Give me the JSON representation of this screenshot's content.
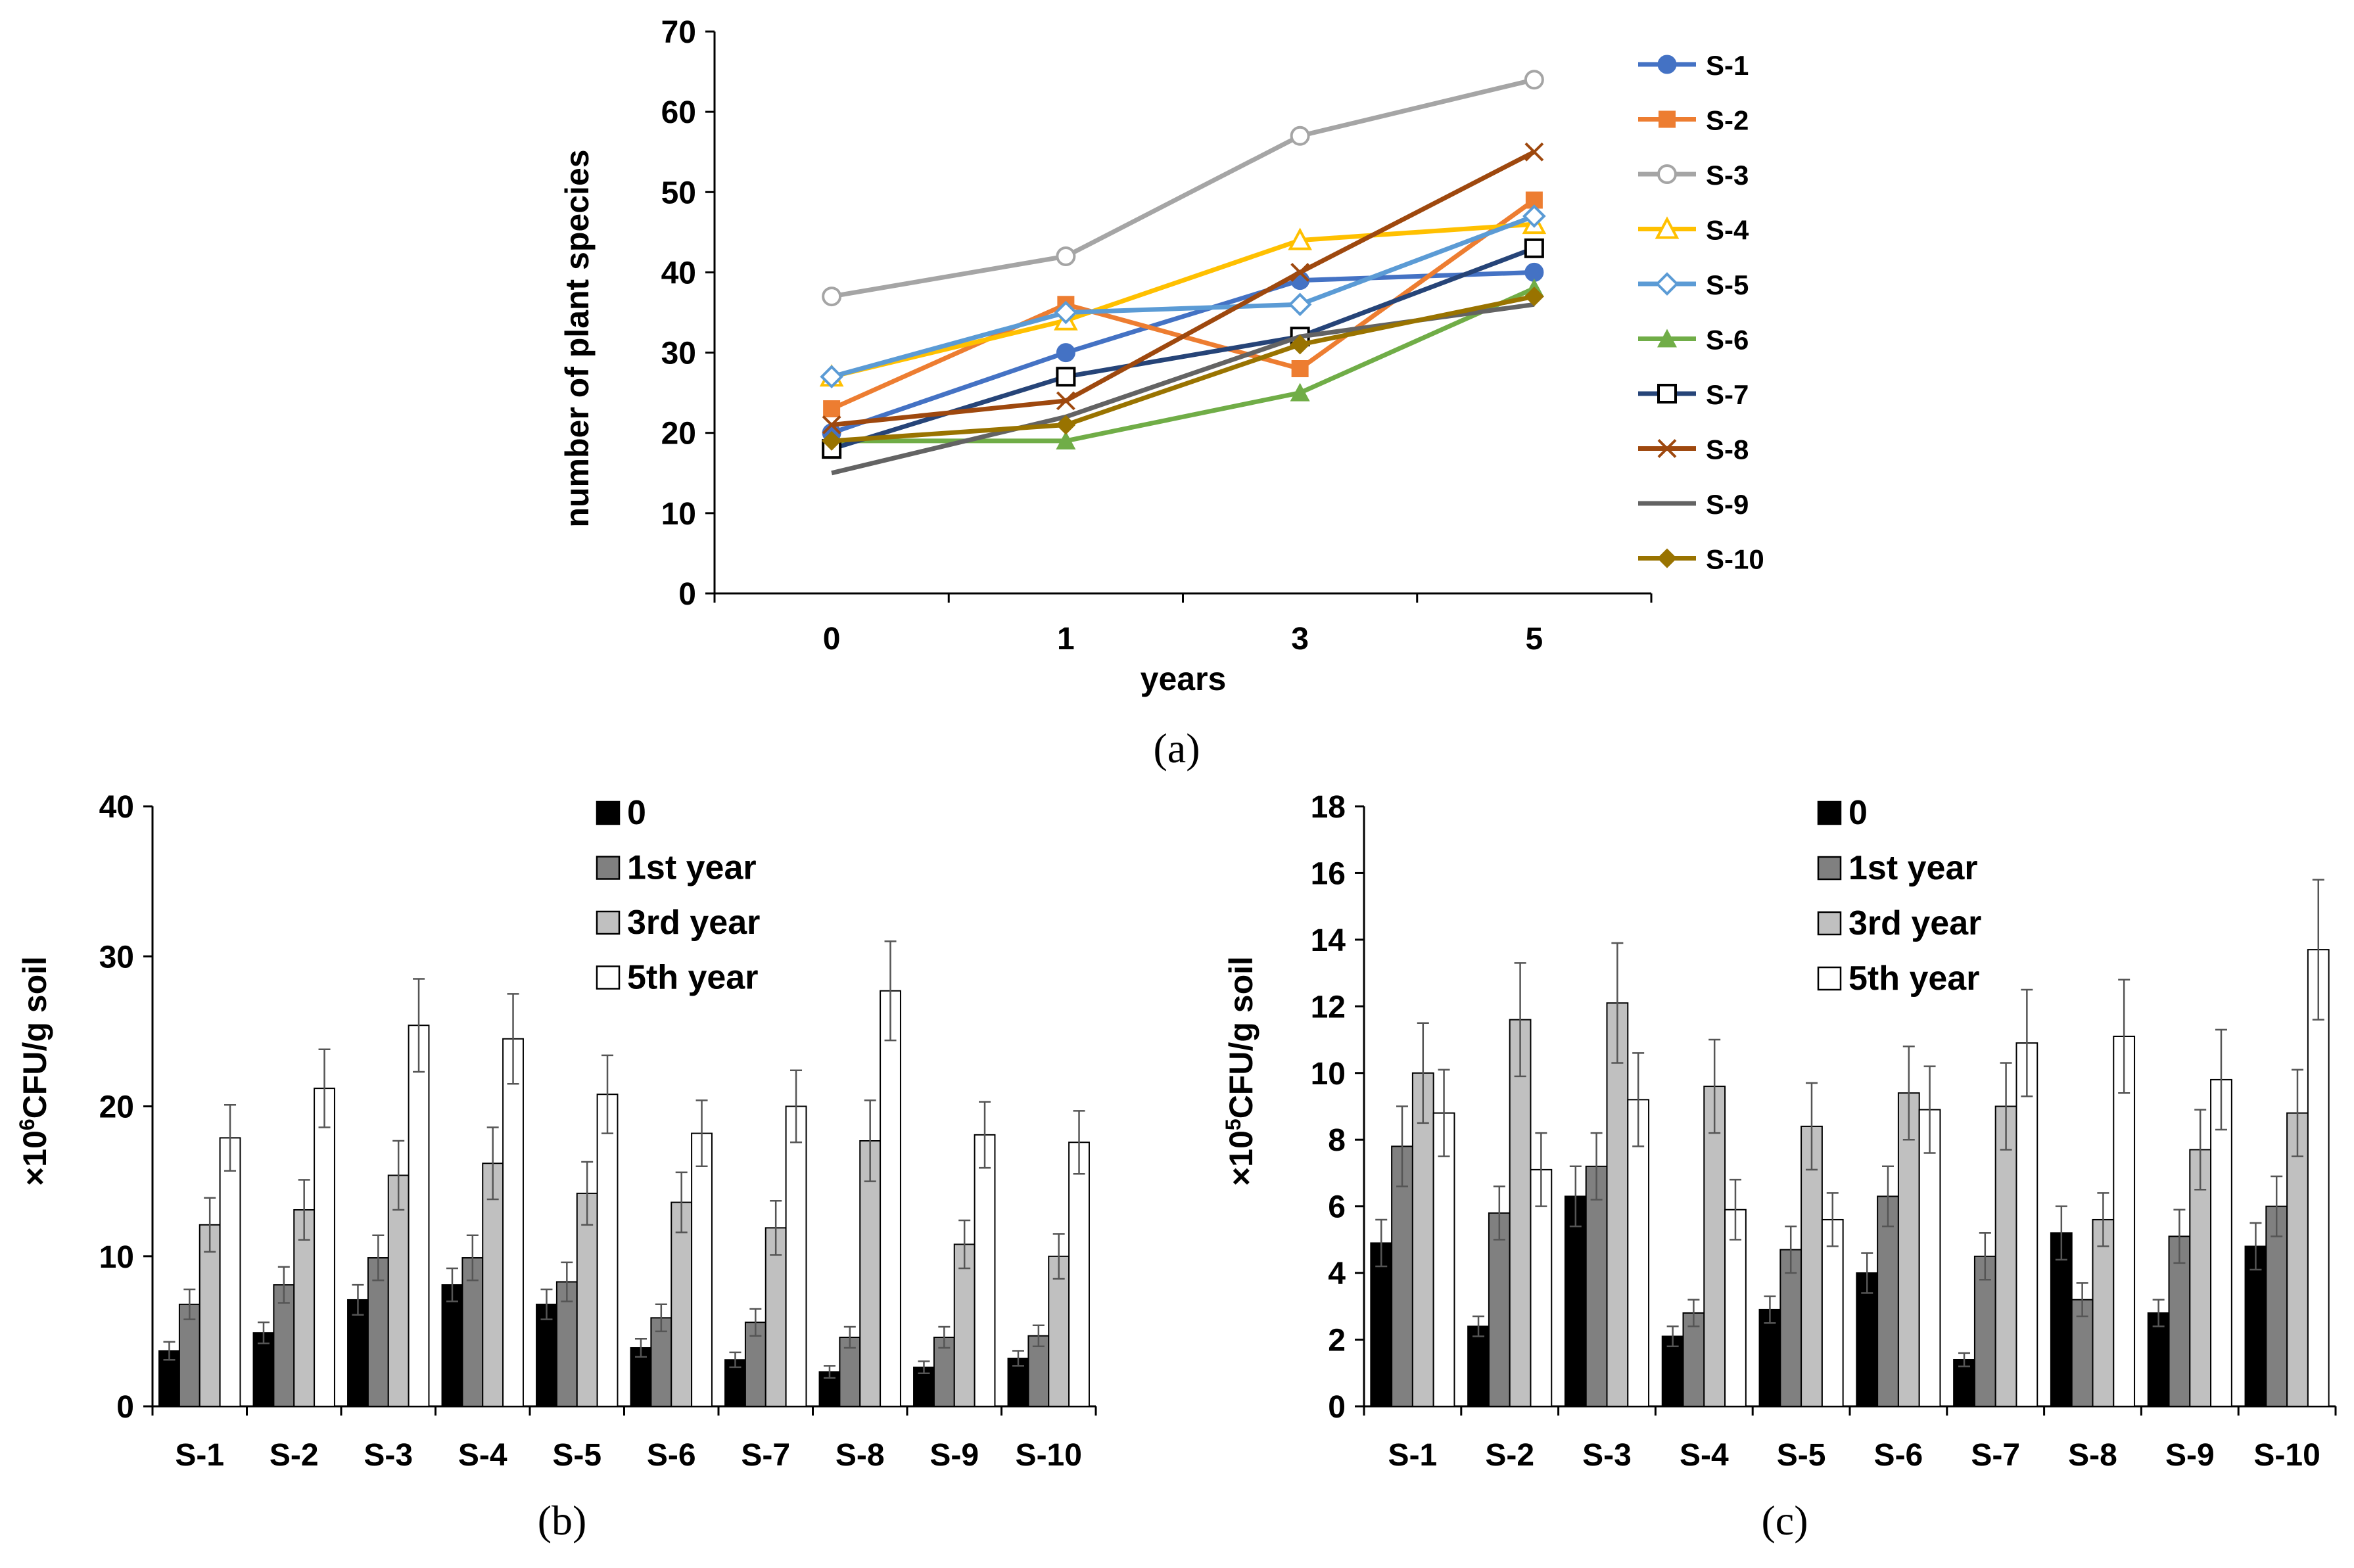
{
  "chart_data": [
    {
      "type": "line",
      "caption": "(a)",
      "xlabel": "years",
      "ylabel": "number of plant species",
      "categories": [
        "0",
        "1",
        "3",
        "5"
      ],
      "ylim": [
        0,
        70
      ],
      "yticks": [
        "0",
        "10",
        "20",
        "30",
        "40",
        "50",
        "60",
        "70"
      ],
      "series": [
        {
          "name": "S-1",
          "values": [
            20,
            30,
            39,
            40
          ],
          "color": "#4472C4",
          "marker": "circle-filled"
        },
        {
          "name": "S-2",
          "values": [
            23,
            36,
            28,
            49
          ],
          "color": "#ED7D31",
          "marker": "square-filled"
        },
        {
          "name": "S-3",
          "values": [
            37,
            42,
            57,
            64
          ],
          "color": "#A5A5A5",
          "marker": "circle-open"
        },
        {
          "name": "S-4",
          "values": [
            27,
            34,
            44,
            46
          ],
          "color": "#FFC000",
          "marker": "triangle-open"
        },
        {
          "name": "S-5",
          "values": [
            27,
            35,
            36,
            47
          ],
          "color": "#5B9BD5",
          "marker": "diamond-open"
        },
        {
          "name": "S-6",
          "values": [
            19,
            19,
            25,
            38
          ],
          "color": "#70AD47",
          "marker": "triangle-filled"
        },
        {
          "name": "S-7",
          "values": [
            18,
            27,
            32,
            43
          ],
          "color": "#264478",
          "marker": "square-open"
        },
        {
          "name": "S-8",
          "values": [
            21,
            24,
            40,
            55
          ],
          "color": "#9E480E",
          "marker": "x"
        },
        {
          "name": "S-9",
          "values": [
            15,
            22,
            32,
            36
          ],
          "color": "#636363",
          "marker": "none"
        },
        {
          "name": "S-10",
          "values": [
            19,
            21,
            31,
            37
          ],
          "color": "#997300",
          "marker": "diamond-filled"
        }
      ]
    },
    {
      "type": "bar",
      "caption": "(b)",
      "ylabel": "×10⁶CFU/g soil",
      "ylabel_prefix": "×10",
      "ylabel_exp": "6",
      "ylabel_suffix": "CFU/g soil",
      "categories": [
        "S-1",
        "S-2",
        "S-3",
        "S-4",
        "S-5",
        "S-6",
        "S-7",
        "S-8",
        "S-9",
        "S-10"
      ],
      "ylim": [
        0,
        40
      ],
      "yticks": [
        "0",
        "10",
        "20",
        "30",
        "40"
      ],
      "series": [
        {
          "name": "0",
          "color": "#000000",
          "values": [
            3.7,
            4.9,
            7.1,
            8.1,
            6.8,
            3.9,
            3.1,
            2.3,
            2.6,
            3.2
          ],
          "errors": [
            0.6,
            0.7,
            1.0,
            1.1,
            1.0,
            0.6,
            0.5,
            0.4,
            0.4,
            0.5
          ]
        },
        {
          "name": "1st year",
          "color": "#808080",
          "values": [
            6.8,
            8.1,
            9.9,
            9.9,
            8.3,
            5.9,
            5.6,
            4.6,
            4.6,
            4.7
          ],
          "errors": [
            1.0,
            1.2,
            1.5,
            1.5,
            1.3,
            0.9,
            0.9,
            0.7,
            0.7,
            0.7
          ]
        },
        {
          "name": "3rd year",
          "color": "#C0C0C0",
          "values": [
            12.1,
            13.1,
            15.4,
            16.2,
            14.2,
            13.6,
            11.9,
            17.7,
            10.8,
            10.0
          ],
          "errors": [
            1.8,
            2.0,
            2.3,
            2.4,
            2.1,
            2.0,
            1.8,
            2.7,
            1.6,
            1.5
          ]
        },
        {
          "name": "5th year",
          "color": "#FFFFFF",
          "values": [
            17.9,
            21.2,
            25.4,
            24.5,
            20.8,
            18.2,
            20.0,
            27.7,
            18.1,
            17.6
          ],
          "errors": [
            2.2,
            2.6,
            3.1,
            3.0,
            2.6,
            2.2,
            2.4,
            3.3,
            2.2,
            2.1
          ]
        }
      ],
      "legend": "top-right"
    },
    {
      "type": "bar",
      "caption": "(c)",
      "ylabel": "×10⁵CFU/g soil",
      "ylabel_prefix": "×10",
      "ylabel_exp": "5",
      "ylabel_suffix": "CFU/g soil",
      "categories": [
        "S-1",
        "S-2",
        "S-3",
        "S-4",
        "S-5",
        "S-6",
        "S-7",
        "S-8",
        "S-9",
        "S-10"
      ],
      "ylim": [
        0,
        18
      ],
      "yticks": [
        "0",
        "2",
        "4",
        "6",
        "8",
        "10",
        "12",
        "14",
        "16",
        "18"
      ],
      "series": [
        {
          "name": "0",
          "color": "#000000",
          "values": [
            4.9,
            2.4,
            6.3,
            2.1,
            2.9,
            4.0,
            1.4,
            5.2,
            2.8,
            4.8
          ],
          "errors": [
            0.7,
            0.3,
            0.9,
            0.3,
            0.4,
            0.6,
            0.2,
            0.8,
            0.4,
            0.7
          ]
        },
        {
          "name": "1st year",
          "color": "#808080",
          "values": [
            7.8,
            5.8,
            7.2,
            2.8,
            4.7,
            6.3,
            4.5,
            3.2,
            5.1,
            6.0
          ],
          "errors": [
            1.2,
            0.8,
            1.0,
            0.4,
            0.7,
            0.9,
            0.7,
            0.5,
            0.8,
            0.9
          ]
        },
        {
          "name": "3rd year",
          "color": "#C0C0C0",
          "values": [
            10.0,
            11.6,
            12.1,
            9.6,
            8.4,
            9.4,
            9.0,
            5.6,
            7.7,
            8.8
          ],
          "errors": [
            1.5,
            1.7,
            1.8,
            1.4,
            1.3,
            1.4,
            1.3,
            0.8,
            1.2,
            1.3
          ]
        },
        {
          "name": "5th year",
          "color": "#FFFFFF",
          "values": [
            8.8,
            7.1,
            9.2,
            5.9,
            5.6,
            8.9,
            10.9,
            11.1,
            9.8,
            13.7
          ],
          "errors": [
            1.3,
            1.1,
            1.4,
            0.9,
            0.8,
            1.3,
            1.6,
            1.7,
            1.5,
            2.1
          ]
        }
      ],
      "legend": "top-right"
    }
  ]
}
